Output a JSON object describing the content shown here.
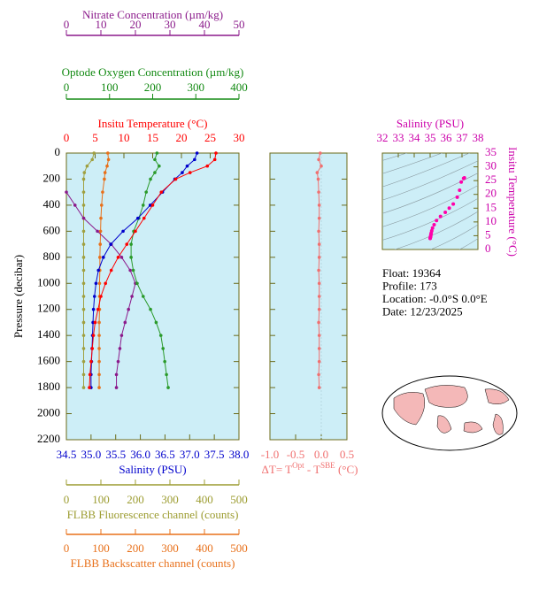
{
  "chart_data": {
    "type": "profile",
    "pressure": [
      0,
      50,
      100,
      150,
      200,
      300,
      400,
      500,
      600,
      700,
      800,
      900,
      1000,
      1100,
      1200,
      1300,
      1400,
      1500,
      1600,
      1700,
      1800
    ],
    "ylabel": "Pressure (decibar)",
    "ylim": [
      0,
      2200
    ],
    "yticks": [
      0,
      200,
      400,
      600,
      800,
      1000,
      1200,
      1400,
      1600,
      1800,
      2000,
      2200
    ],
    "axes": {
      "nitrate": {
        "title": "Nitrate Concentration (µm/kg)",
        "color": "#8b1a8b",
        "lim": [
          0,
          50
        ],
        "ticks": [
          0,
          10,
          20,
          30,
          40,
          50
        ]
      },
      "oxygen": {
        "title": "Optode Oxygen Concentration (µm/kg)",
        "color": "#138a13",
        "lim": [
          0,
          400
        ],
        "ticks": [
          0,
          100,
          200,
          300,
          400
        ]
      },
      "temperature": {
        "title": "Insitu Temperature (°C)",
        "color": "#ff0000",
        "lim": [
          0,
          30
        ],
        "ticks": [
          0,
          5,
          10,
          15,
          20,
          25,
          30
        ]
      },
      "salinity": {
        "title": "Salinity (PSU)",
        "color": "#0000cc",
        "lim": [
          34.5,
          38.0
        ],
        "ticks": [
          34.5,
          {
            "value": 35,
            "label": "35.0"
          },
          35.5,
          {
            "value": 36,
            "label": "36.0"
          },
          36.5,
          {
            "value": 37,
            "label": "37.0"
          },
          37.5,
          {
            "value": 38,
            "label": "38.0"
          }
        ]
      },
      "fluorescence": {
        "title": "FLBB Fluorescence channel (counts)",
        "color": "#9c9c30",
        "lim": [
          0,
          500
        ],
        "ticks": [
          0,
          100,
          200,
          300,
          400,
          500
        ]
      },
      "backscatter": {
        "title": "FLBB Backscatter channel (counts)",
        "color": "#e8701a",
        "lim": [
          0,
          500
        ],
        "ticks": [
          0,
          100,
          200,
          300,
          400,
          500
        ]
      },
      "delta": {
        "title": [
          "ΔT= T",
          "Opt",
          " - T",
          "SBE",
          " (°C)"
        ],
        "color": "#f07070",
        "lim": [
          -1.0,
          0.5
        ],
        "ticks": [
          {
            "value": -1,
            "label": "-1.0"
          },
          -0.5,
          {
            "value": 0,
            "label": "0.0"
          },
          0.5
        ]
      }
    },
    "series": [
      {
        "axis": "temperature",
        "color": "#ff0000",
        "values": [
          26.0,
          25.8,
          24.5,
          21.5,
          19.0,
          16.5,
          15.0,
          13.5,
          12.0,
          10.5,
          9.0,
          7.8,
          6.8,
          6.0,
          5.5,
          5.0,
          4.7,
          4.5,
          4.3,
          4.1,
          4.0
        ]
      },
      {
        "axis": "salinity",
        "color": "#0000cc",
        "values": [
          37.15,
          37.1,
          36.95,
          36.85,
          36.7,
          36.45,
          36.2,
          35.95,
          35.65,
          35.4,
          35.25,
          35.15,
          35.1,
          35.07,
          35.05,
          35.04,
          35.03,
          35.02,
          35.01,
          35.0,
          35.0
        ]
      },
      {
        "axis": "oxygen",
        "color": "#2a9a2a",
        "values": [
          210,
          205,
          215,
          205,
          195,
          185,
          178,
          168,
          156,
          150,
          150,
          155,
          164,
          178,
          195,
          208,
          219,
          224,
          228,
          232,
          236
        ]
      },
      {
        "axis": "nitrate",
        "color": "#8b1a8b",
        "values": [
          null,
          null,
          null,
          null,
          null,
          0,
          2.5,
          5,
          9,
          13,
          16,
          18.5,
          20,
          19,
          18,
          17,
          16,
          15.5,
          15,
          14.5,
          14.5
        ]
      },
      {
        "axis": "fluorescence",
        "color": "#a0a040",
        "values": [
          80,
          75,
          60,
          52,
          50,
          50,
          50,
          50,
          50,
          50,
          50,
          50,
          50,
          50,
          50,
          50,
          50,
          50,
          50,
          50,
          50
        ]
      },
      {
        "axis": "backscatter",
        "color": "#e8701a",
        "values": [
          120,
          122,
          118,
          112,
          110,
          105,
          102,
          100,
          99,
          98,
          97,
          97,
          96,
          96,
          96,
          95,
          95,
          95,
          95,
          95,
          95
        ]
      },
      {
        "axis": "delta",
        "color": "#f07070",
        "values": [
          -0.02,
          -0.05,
          0.0,
          -0.08,
          -0.06,
          -0.05,
          -0.04,
          -0.04,
          -0.05,
          -0.04,
          -0.04,
          -0.05,
          -0.04,
          -0.04,
          -0.04,
          -0.05,
          -0.04,
          -0.04,
          -0.04,
          -0.05,
          -0.04
        ]
      }
    ],
    "ts": {
      "xlabel": "Salinity (PSU)",
      "ylabel": "Insitu Temperature (°C)",
      "color": "#ff00aa",
      "xlim": [
        32,
        38
      ],
      "xticks": [
        32,
        33,
        34,
        35,
        36,
        37,
        38
      ],
      "ylim": [
        0,
        35
      ],
      "yticks": [
        0,
        5,
        10,
        15,
        20,
        25,
        30,
        35
      ]
    },
    "info": [
      "Float:  19364",
      "Profile:  173",
      "Location:  -0.0°S   0.0°E",
      "Date:  12/23/2025"
    ]
  }
}
